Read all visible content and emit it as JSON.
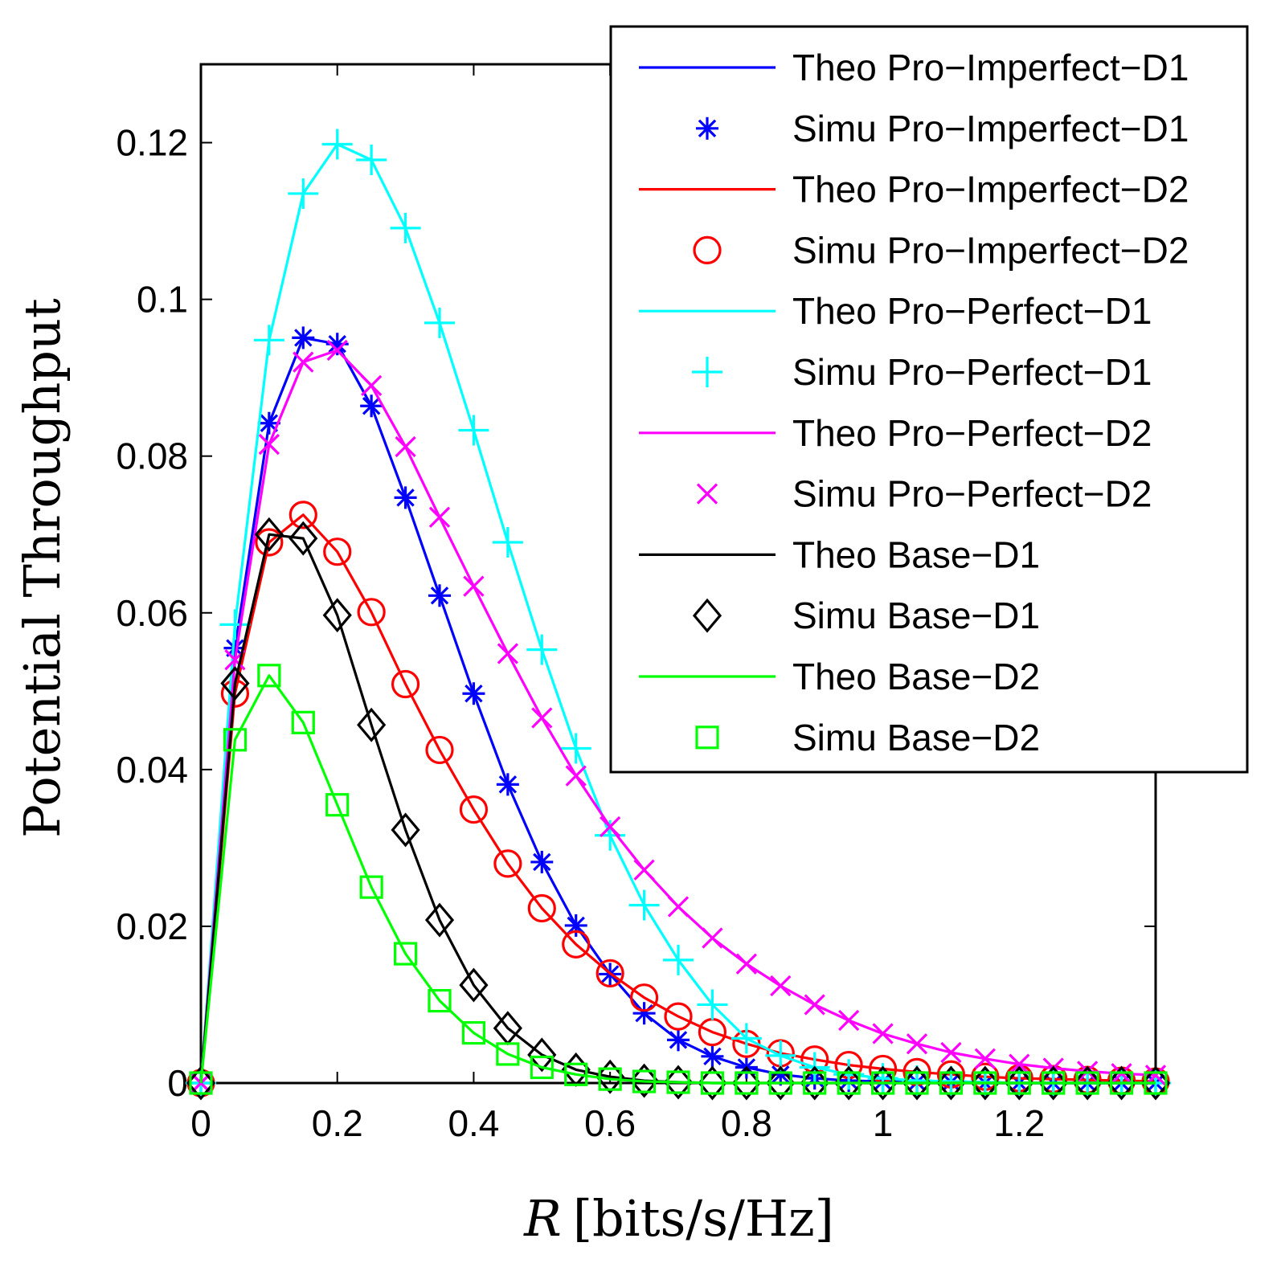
{
  "chart_data": {
    "type": "line",
    "title": "",
    "xlabel_var": "R",
    "xlabel_unit": "[bits/s/Hz]",
    "ylabel": "Potential Throughput",
    "xlim": [
      0,
      1.4
    ],
    "ylim": [
      0,
      0.13
    ],
    "xticks": [
      0,
      0.2,
      0.4,
      0.6,
      0.8,
      1,
      1.2
    ],
    "xtick_labels": [
      "0",
      "0.2",
      "0.4",
      "0.6",
      "0.8",
      "1",
      "1.2"
    ],
    "yticks": [
      0,
      0.02,
      0.04,
      0.06,
      0.08,
      0.1,
      0.12
    ],
    "ytick_labels": [
      "0",
      "0.02",
      "0.04",
      "0.06",
      "0.08",
      "0.1",
      "0.12"
    ],
    "grid": false,
    "legend_position": "top-right",
    "x": [
      0,
      0.05,
      0.1,
      0.15,
      0.2,
      0.25,
      0.3,
      0.35,
      0.4,
      0.45,
      0.5,
      0.55,
      0.6,
      0.65,
      0.7,
      0.75,
      0.8,
      0.85,
      0.9,
      0.95,
      1.0,
      1.05,
      1.1,
      1.15,
      1.2,
      1.25,
      1.3,
      1.35,
      1.4
    ],
    "series": [
      {
        "name": "Pro-Imperfect-D1",
        "color": "#0000ff",
        "marker": "asterisk",
        "theo_label": "Theo Pro−Imperfect−D1",
        "simu_label": "Simu Pro−Imperfect−D1",
        "values": [
          0,
          0.0555,
          0.0842,
          0.0951,
          0.0943,
          0.0864,
          0.0747,
          0.0622,
          0.0497,
          0.0381,
          0.0282,
          0.0201,
          0.0139,
          0.0089,
          0.0055,
          0.0034,
          0.002,
          0.0011,
          0.0006,
          0.0003,
          0.0002,
          0.0001,
          0.0001,
          0,
          0,
          0,
          0,
          0,
          0
        ]
      },
      {
        "name": "Pro-Imperfect-D2",
        "color": "#ff0000",
        "marker": "circle",
        "theo_label": "Theo Pro−Imperfect−D2",
        "simu_label": "Simu Pro−Imperfect−D2",
        "values": [
          0,
          0.0497,
          0.069,
          0.0725,
          0.0678,
          0.0601,
          0.0509,
          0.0425,
          0.0349,
          0.028,
          0.0223,
          0.0177,
          0.014,
          0.0109,
          0.0085,
          0.0065,
          0.005,
          0.0038,
          0.003,
          0.0023,
          0.0018,
          0.0014,
          0.0011,
          0.0008,
          0.0006,
          0.0005,
          0.0004,
          0.0003,
          0.0002
        ]
      },
      {
        "name": "Pro-Perfect-D1",
        "color": "#00ffff",
        "marker": "plus",
        "theo_label": "Theo Pro−Perfect−D1",
        "simu_label": "Simu Pro−Perfect−D1",
        "values": [
          0,
          0.0585,
          0.0948,
          0.1135,
          0.1198,
          0.1178,
          0.1091,
          0.097,
          0.0833,
          0.069,
          0.0553,
          0.0427,
          0.0316,
          0.0227,
          0.0157,
          0.01,
          0.0057,
          0.0035,
          0.002,
          0.0011,
          0.0006,
          0.0003,
          0.0002,
          0.0001,
          0,
          0,
          0,
          0,
          0
        ]
      },
      {
        "name": "Pro-Perfect-D2",
        "color": "#ff00ff",
        "marker": "cross",
        "theo_label": "Theo Pro−Perfect−D2",
        "simu_label": "Simu Pro−Perfect−D2",
        "values": [
          0,
          0.054,
          0.0815,
          0.092,
          0.0935,
          0.089,
          0.0812,
          0.0722,
          0.0634,
          0.0548,
          0.0466,
          0.0392,
          0.0327,
          0.0272,
          0.0225,
          0.0185,
          0.0152,
          0.0124,
          0.01,
          0.008,
          0.0063,
          0.005,
          0.0039,
          0.0031,
          0.0024,
          0.0019,
          0.0015,
          0.0012,
          0.001
        ]
      },
      {
        "name": "Base-D1",
        "color": "#000000",
        "marker": "diamond",
        "theo_label": "Theo Base−D1",
        "simu_label": "Simu Base−D1",
        "values": [
          0,
          0.051,
          0.07,
          0.0695,
          0.0597,
          0.0457,
          0.0323,
          0.0208,
          0.0125,
          0.007,
          0.0036,
          0.0017,
          0.0008,
          0.0003,
          0.0001,
          0,
          0,
          0,
          0,
          0,
          0,
          0,
          0,
          0,
          0,
          0,
          0,
          0,
          0
        ]
      },
      {
        "name": "Base-D2",
        "color": "#00ff00",
        "marker": "square",
        "theo_label": "Theo Base−D2",
        "simu_label": "Simu Base−D2",
        "values": [
          0,
          0.0438,
          0.052,
          0.046,
          0.0355,
          0.025,
          0.0165,
          0.0105,
          0.0064,
          0.0037,
          0.002,
          0.0011,
          0.0005,
          0.0002,
          0.0001,
          0,
          0,
          0,
          0,
          0,
          0,
          0,
          0,
          0,
          0,
          0,
          0,
          0,
          0
        ]
      }
    ]
  }
}
